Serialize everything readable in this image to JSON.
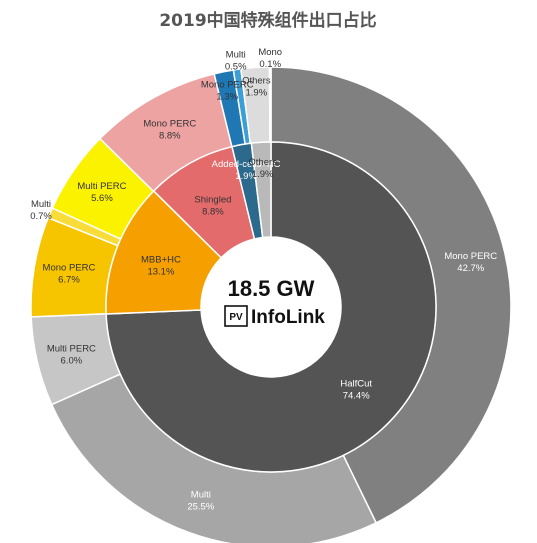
{
  "chart_data": {
    "type": "pie",
    "subtype": "nested-donut",
    "title": "2019中国特殊组件出口占比",
    "center_value": "18.5 GW",
    "brand": {
      "badge": "PV",
      "name": "InfoLink"
    },
    "inner_ring": [
      {
        "label": "HalfCut",
        "value": 74.4,
        "value_text": "74.4%",
        "color": "#545454"
      },
      {
        "label": "MBB+HC",
        "value": 13.1,
        "value_text": "13.1%",
        "color": "#f5a000"
      },
      {
        "label": "Shingled",
        "value": 8.8,
        "value_text": "8.8%",
        "color": "#e46b6b"
      },
      {
        "label": "Added-cells+HC",
        "value": 1.9,
        "value_text": "1.9%",
        "color": "#2b6a8c"
      },
      {
        "label": "Others",
        "value": 1.9,
        "value_text": "1.9%",
        "color": "#b9b9b9"
      }
    ],
    "outer_ring": [
      {
        "label": "Mono PERC",
        "value": 42.7,
        "value_text": "42.7%",
        "color": "#808080",
        "parent": "HalfCut"
      },
      {
        "label": "Multi",
        "value": 25.5,
        "value_text": "25.5%",
        "color": "#a6a6a6",
        "parent": "HalfCut"
      },
      {
        "label": "Multi PERC",
        "value": 6.0,
        "value_text": "6.0%",
        "color": "#c6c6c6",
        "parent": "HalfCut"
      },
      {
        "label": "Mono PERC",
        "value": 6.7,
        "value_text": "6.7%",
        "color": "#f7c400",
        "parent": "MBB+HC"
      },
      {
        "label": "Multi",
        "value": 0.7,
        "value_text": "0.7%",
        "color": "#f8dc3a",
        "parent": "MBB+HC"
      },
      {
        "label": "Multi PERC",
        "value": 5.6,
        "value_text": "5.6%",
        "color": "#fbf200",
        "parent": "MBB+HC"
      },
      {
        "label": "Mono PERC",
        "value": 8.8,
        "value_text": "8.8%",
        "color": "#eea3a3",
        "parent": "Shingled"
      },
      {
        "label": "Mono PERC",
        "value": 1.3,
        "value_text": "1.3%",
        "color": "#1f77b4",
        "parent": "Added-cells+HC"
      },
      {
        "label": "Multi",
        "value": 0.5,
        "value_text": "0.5%",
        "color": "#3b9ed6",
        "parent": "Added-cells+HC"
      },
      {
        "label": "Others",
        "value": 1.9,
        "value_text": "1.9%",
        "color": "#dcdcdc",
        "parent": "Others"
      },
      {
        "label": "Mono",
        "value": 0.1,
        "value_text": "0.1%",
        "color": "#e9e9e9",
        "parent": "Others"
      }
    ]
  }
}
